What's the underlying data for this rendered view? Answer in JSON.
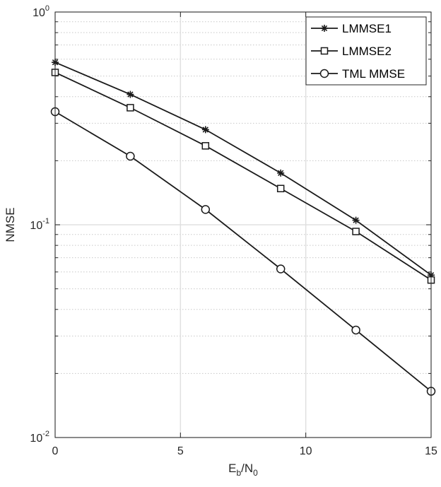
{
  "chart_data": {
    "type": "line",
    "title": "",
    "xlabel_main": "E",
    "xlabel_sub1": "b",
    "xlabel_slash": "/N",
    "xlabel_sub2": "0",
    "ylabel": "NMSE",
    "x": [
      0,
      3,
      6,
      9,
      12,
      15
    ],
    "xlim": [
      0,
      15
    ],
    "ylim": [
      0.01,
      1
    ],
    "yscale": "log",
    "grid": true,
    "legend_position": "top-right",
    "x_ticks": [
      {
        "value": 0,
        "label": "0"
      },
      {
        "value": 5,
        "label": "5"
      },
      {
        "value": 10,
        "label": "10"
      },
      {
        "value": 15,
        "label": "15"
      }
    ],
    "y_ticks": [
      {
        "value": 1,
        "base": "10",
        "exp": "0"
      },
      {
        "value": 0.1,
        "base": "10",
        "exp": "-1"
      },
      {
        "value": 0.01,
        "base": "10",
        "exp": "-2"
      }
    ],
    "series": [
      {
        "name": "LMMSE1",
        "marker": "asterisk",
        "values": [
          0.58,
          0.41,
          0.28,
          0.175,
          0.105,
          0.058
        ]
      },
      {
        "name": "LMMSE2",
        "marker": "square",
        "values": [
          0.52,
          0.355,
          0.235,
          0.148,
          0.093,
          0.055
        ]
      },
      {
        "name": "TML MMSE",
        "marker": "circle",
        "values": [
          0.34,
          0.21,
          0.118,
          0.062,
          0.032,
          0.0165
        ]
      }
    ],
    "colors": {
      "series": "#1a1a1a",
      "grid_major": "#e0e0e0",
      "grid_minor": "#c8c8c8",
      "axis": "#262626"
    }
  }
}
